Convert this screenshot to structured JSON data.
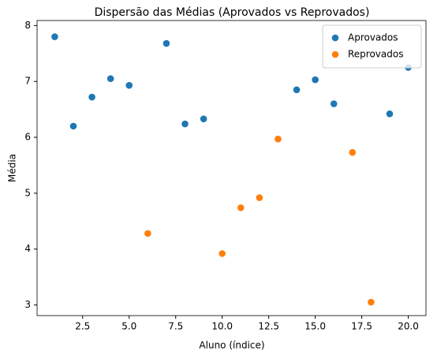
{
  "chart_data": {
    "type": "scatter",
    "title": "Dispersão das Médias (Aprovados vs Reprovados)",
    "x_label": "Aluno (índice)",
    "y_label": "Média",
    "series": [
      {
        "name": "Aprovados",
        "color": "#1f77b4",
        "x": [
          1,
          2,
          3,
          4,
          5,
          7,
          8,
          9,
          14,
          15,
          16,
          19,
          20
        ],
        "values": [
          7.8,
          6.2,
          6.72,
          7.05,
          6.93,
          7.68,
          6.24,
          6.33,
          6.85,
          7.03,
          6.6,
          6.42,
          7.25
        ]
      },
      {
        "name": "Reprovados",
        "color": "#ff7f0e",
        "x": [
          6,
          10,
          11,
          12,
          13,
          17,
          18
        ],
        "values": [
          4.28,
          3.92,
          4.74,
          4.92,
          5.97,
          5.73,
          3.05
        ]
      }
    ],
    "xlim": [
      0.05,
      20.95
    ],
    "xticks": [
      {
        "value": 2.5,
        "label": "2.5"
      },
      {
        "value": 5,
        "label": "5.0"
      },
      {
        "value": 7.5,
        "label": "7.5"
      },
      {
        "value": 10,
        "label": "10.0"
      },
      {
        "value": 12.5,
        "label": "12.5"
      },
      {
        "value": 15,
        "label": "15.0"
      },
      {
        "value": 17.5,
        "label": "17.5"
      },
      {
        "value": 20,
        "label": "20.0"
      }
    ],
    "ylim": [
      2.81,
      8.09
    ],
    "yticks": [
      3,
      4,
      5,
      6,
      7,
      8
    ],
    "legend": "upper right"
  }
}
